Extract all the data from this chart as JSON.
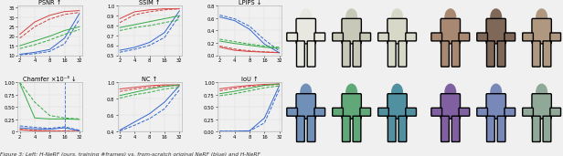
{
  "subplots": [
    {
      "title": "PSNR ↑",
      "xlabel_ticks": [
        2,
        4,
        8,
        16,
        32
      ],
      "ylim": [
        10,
        36
      ],
      "yticks": [
        10,
        15,
        20,
        25,
        30,
        35
      ],
      "yticklabels": [
        "10",
        "15",
        "20",
        "25",
        "30",
        "35"
      ],
      "lines": [
        {
          "color": "#d44040",
          "style": "-",
          "data_x": [
            2,
            4,
            8,
            16,
            32
          ],
          "data_y": [
            21,
            27.5,
            31,
            33,
            33.5
          ]
        },
        {
          "color": "#d44040",
          "style": "--",
          "data_x": [
            2,
            4,
            8,
            16,
            32
          ],
          "data_y": [
            19,
            25,
            29,
            31.5,
            32.5
          ]
        },
        {
          "color": "#3366cc",
          "style": "-",
          "data_x": [
            2,
            4,
            8,
            16,
            32
          ],
          "data_y": [
            10.5,
            11.5,
            13,
            19,
            32
          ]
        },
        {
          "color": "#3366cc",
          "style": "--",
          "data_x": [
            2,
            4,
            8,
            16,
            32
          ],
          "data_y": [
            10.2,
            10.8,
            12,
            16,
            29
          ]
        },
        {
          "color": "#33aa44",
          "style": "-",
          "data_x": [
            2,
            4,
            8,
            16,
            32
          ],
          "data_y": [
            15,
            17.5,
            20,
            23,
            25
          ]
        },
        {
          "color": "#33aa44",
          "style": "--",
          "data_x": [
            2,
            4,
            8,
            16,
            32
          ],
          "data_y": [
            13.5,
            15.5,
            18,
            21,
            23.5
          ]
        }
      ]
    },
    {
      "title": "SSIM ↑",
      "xlabel_ticks": [
        2,
        4,
        8,
        16,
        32
      ],
      "ylim": [
        0.5,
        1.0
      ],
      "yticks": [
        0.5,
        0.6,
        0.7,
        0.8,
        0.9,
        1.0
      ],
      "yticklabels": [
        "0.5",
        "0.6",
        "0.7",
        "0.8",
        "0.9",
        "1.0"
      ],
      "lines": [
        {
          "color": "#d44040",
          "style": "-",
          "data_x": [
            2,
            4,
            8,
            16,
            32
          ],
          "data_y": [
            0.87,
            0.94,
            0.96,
            0.97,
            0.97
          ]
        },
        {
          "color": "#d44040",
          "style": "--",
          "data_x": [
            2,
            4,
            8,
            16,
            32
          ],
          "data_y": [
            0.83,
            0.91,
            0.94,
            0.96,
            0.97
          ]
        },
        {
          "color": "#3366cc",
          "style": "-",
          "data_x": [
            2,
            4,
            8,
            16,
            32
          ],
          "data_y": [
            0.55,
            0.58,
            0.63,
            0.73,
            0.95
          ]
        },
        {
          "color": "#3366cc",
          "style": "--",
          "data_x": [
            2,
            4,
            8,
            16,
            32
          ],
          "data_y": [
            0.53,
            0.56,
            0.6,
            0.68,
            0.9
          ]
        },
        {
          "color": "#33aa44",
          "style": "-",
          "data_x": [
            2,
            4,
            8,
            16,
            32
          ],
          "data_y": [
            0.78,
            0.81,
            0.84,
            0.87,
            0.9
          ]
        },
        {
          "color": "#33aa44",
          "style": "--",
          "data_x": [
            2,
            4,
            8,
            16,
            32
          ],
          "data_y": [
            0.75,
            0.78,
            0.8,
            0.83,
            0.86
          ]
        }
      ]
    },
    {
      "title": "LPIPS ↓",
      "xlabel_ticks": [
        2,
        4,
        8,
        16,
        32
      ],
      "ylim": [
        0.0,
        0.8
      ],
      "yticks": [
        0.0,
        0.2,
        0.4,
        0.6,
        0.8
      ],
      "yticklabels": [
        "0.0",
        "0.2",
        "0.4",
        "0.6",
        "0.8"
      ],
      "lines": [
        {
          "color": "#d44040",
          "style": "-",
          "data_x": [
            2,
            4,
            8,
            16,
            32
          ],
          "data_y": [
            0.13,
            0.08,
            0.06,
            0.05,
            0.04
          ]
        },
        {
          "color": "#d44040",
          "style": "--",
          "data_x": [
            2,
            4,
            8,
            16,
            32
          ],
          "data_y": [
            0.15,
            0.1,
            0.07,
            0.055,
            0.045
          ]
        },
        {
          "color": "#3366cc",
          "style": "-",
          "data_x": [
            2,
            4,
            8,
            16,
            32
          ],
          "data_y": [
            0.62,
            0.56,
            0.42,
            0.18,
            0.04
          ]
        },
        {
          "color": "#3366cc",
          "style": "--",
          "data_x": [
            2,
            4,
            8,
            16,
            32
          ],
          "data_y": [
            0.65,
            0.59,
            0.47,
            0.25,
            0.07
          ]
        },
        {
          "color": "#33aa44",
          "style": "-",
          "data_x": [
            2,
            4,
            8,
            16,
            32
          ],
          "data_y": [
            0.23,
            0.19,
            0.16,
            0.13,
            0.11
          ]
        },
        {
          "color": "#33aa44",
          "style": "--",
          "data_x": [
            2,
            4,
            8,
            16,
            32
          ],
          "data_y": [
            0.26,
            0.22,
            0.18,
            0.15,
            0.13
          ]
        }
      ]
    },
    {
      "title": "Chamfer ×10⁻³ ↓",
      "xlabel_ticks": [
        2,
        4,
        8,
        16,
        32
      ],
      "ylim": [
        0.0,
        1.0
      ],
      "yticks": [
        0.0,
        0.25,
        0.5,
        0.75,
        1.0
      ],
      "yticklabels": [
        "0",
        "0.25",
        "0.50",
        "0.75",
        "1.00"
      ],
      "lines": [
        {
          "color": "#d44040",
          "style": "-",
          "data_x": [
            2,
            4,
            8,
            16,
            32
          ],
          "data_y": [
            0.04,
            0.02,
            0.015,
            0.01,
            0.008
          ]
        },
        {
          "color": "#d44040",
          "style": "--",
          "data_x": [
            2,
            4,
            8,
            16,
            32
          ],
          "data_y": [
            0.05,
            0.03,
            0.02,
            0.015,
            0.01
          ]
        },
        {
          "color": "#3366cc",
          "style": "-",
          "data_x": [
            2,
            4,
            8,
            16,
            32
          ],
          "data_y": [
            0.08,
            0.06,
            0.05,
            0.08,
            0.02
          ]
        },
        {
          "color": "#3366cc",
          "style": "--",
          "data_x": [
            2,
            4,
            8,
            16,
            32
          ],
          "data_y": [
            0.12,
            0.09,
            0.07,
            0.1,
            0.03
          ]
        },
        {
          "color": "#33aa44",
          "style": "-",
          "data_x": [
            2,
            4,
            8,
            16,
            32
          ],
          "data_y": [
            0.98,
            0.28,
            0.26,
            0.26,
            0.25
          ]
        },
        {
          "color": "#33aa44",
          "style": "--",
          "data_x": [
            2,
            4,
            8,
            16,
            32
          ],
          "data_y": [
            1.0,
            0.6,
            0.33,
            0.28,
            0.26
          ]
        }
      ],
      "vline": {
        "x": 16,
        "color": "#3366cc",
        "style": "--"
      }
    },
    {
      "title": "NC ↑",
      "xlabel_ticks": [
        2,
        4,
        8,
        16,
        32
      ],
      "ylim": [
        0.4,
        1.0
      ],
      "yticks": [
        0.4,
        0.6,
        0.8,
        1.0
      ],
      "yticklabels": [
        "0.4",
        "0.6",
        "0.8",
        "1.0"
      ],
      "lines": [
        {
          "color": "#d44040",
          "style": "-",
          "data_x": [
            2,
            4,
            8,
            16,
            32
          ],
          "data_y": [
            0.92,
            0.94,
            0.96,
            0.97,
            0.97
          ]
        },
        {
          "color": "#d44040",
          "style": "--",
          "data_x": [
            2,
            4,
            8,
            16,
            32
          ],
          "data_y": [
            0.89,
            0.92,
            0.94,
            0.96,
            0.96
          ]
        },
        {
          "color": "#3366cc",
          "style": "-",
          "data_x": [
            2,
            4,
            8,
            16,
            32
          ],
          "data_y": [
            0.42,
            0.52,
            0.62,
            0.76,
            0.96
          ]
        },
        {
          "color": "#3366cc",
          "style": "--",
          "data_x": [
            2,
            4,
            8,
            16,
            32
          ],
          "data_y": [
            0.41,
            0.48,
            0.56,
            0.68,
            0.91
          ]
        },
        {
          "color": "#33aa44",
          "style": "-",
          "data_x": [
            2,
            4,
            8,
            16,
            32
          ],
          "data_y": [
            0.84,
            0.88,
            0.92,
            0.95,
            0.97
          ]
        },
        {
          "color": "#33aa44",
          "style": "--",
          "data_x": [
            2,
            4,
            8,
            16,
            32
          ],
          "data_y": [
            0.81,
            0.85,
            0.88,
            0.92,
            0.94
          ]
        }
      ]
    },
    {
      "title": "IoU ↑",
      "xlabel_ticks": [
        2,
        4,
        8,
        16,
        32
      ],
      "ylim": [
        0.0,
        1.0
      ],
      "yticks": [
        0.0,
        0.25,
        0.5,
        0.75,
        1.0
      ],
      "yticklabels": [
        "0.00",
        "0.25",
        "0.50",
        "0.75",
        "1.00"
      ],
      "lines": [
        {
          "color": "#d44040",
          "style": "-",
          "data_x": [
            2,
            4,
            8,
            16,
            32
          ],
          "data_y": [
            0.87,
            0.91,
            0.94,
            0.96,
            0.97
          ]
        },
        {
          "color": "#d44040",
          "style": "--",
          "data_x": [
            2,
            4,
            8,
            16,
            32
          ],
          "data_y": [
            0.83,
            0.88,
            0.92,
            0.94,
            0.96
          ]
        },
        {
          "color": "#3366cc",
          "style": "-",
          "data_x": [
            2,
            4,
            8,
            16,
            32
          ],
          "data_y": [
            0.01,
            0.01,
            0.02,
            0.28,
            0.94
          ]
        },
        {
          "color": "#3366cc",
          "style": "--",
          "data_x": [
            2,
            4,
            8,
            16,
            32
          ],
          "data_y": [
            0.01,
            0.01,
            0.015,
            0.18,
            0.86
          ]
        },
        {
          "color": "#33aa44",
          "style": "-",
          "data_x": [
            2,
            4,
            8,
            16,
            32
          ],
          "data_y": [
            0.77,
            0.82,
            0.88,
            0.94,
            0.97
          ]
        },
        {
          "color": "#33aa44",
          "style": "--",
          "data_x": [
            2,
            4,
            8,
            16,
            32
          ],
          "data_y": [
            0.73,
            0.77,
            0.83,
            0.89,
            0.93
          ]
        }
      ]
    }
  ],
  "caption": "Figure 3: Left: H-NeRF (ours, training #frames) vs. from-scratch original NeRF (blue) and H-NeRF",
  "fig_bg": "#f0f0f0",
  "plot_bg": "#f0f0f0",
  "grid_color": "#cccccc",
  "top_panels": [
    {
      "bg": "#87ceeb",
      "person_color": "#e8e8e0"
    },
    {
      "bg": "#111111",
      "person_color": "#c8c8b8"
    },
    {
      "bg": "#111111",
      "person_color": "#d8d8c8"
    },
    {
      "bg": "#cccccc",
      "person_color": "#a88870"
    },
    {
      "bg": "#111111",
      "person_color": "#806858"
    },
    {
      "bg": "#111111",
      "person_color": "#b09880"
    }
  ],
  "bot_panels": [
    {
      "bg": "#d0d0d0",
      "body_color": "#7090b8"
    },
    {
      "bg": "#d0d0d0",
      "body_color": "#60a878"
    },
    {
      "bg": "#d0d0d0",
      "body_color": "#5090a0"
    },
    {
      "bg": "#d0d0d0",
      "body_color": "#8060a0"
    },
    {
      "bg": "#d0d0d0",
      "body_color": "#7888b8"
    },
    {
      "bg": "#d0d0d0",
      "body_color": "#90a898"
    }
  ]
}
